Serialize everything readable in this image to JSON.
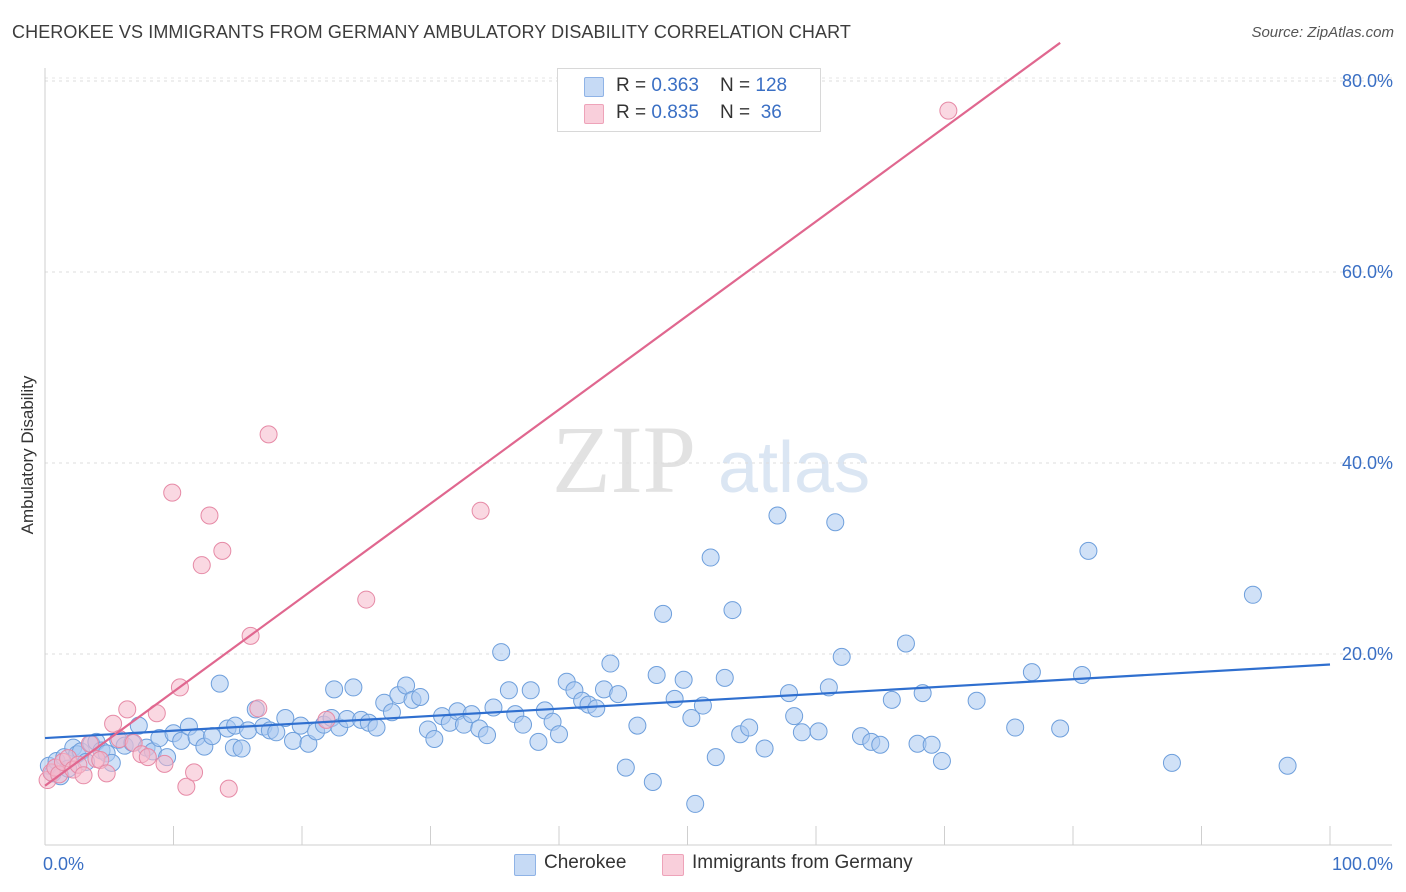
{
  "header": {
    "title": "CHEROKEE VS IMMIGRANTS FROM GERMANY AMBULATORY DISABILITY CORRELATION CHART",
    "source": "Source: ZipAtlas.com"
  },
  "watermark": {
    "zip": "ZIP",
    "atlas": "atlas"
  },
  "legend_top": {
    "rows": [
      {
        "r_label": "R = ",
        "r_value": "0.363",
        "n_label": "N = ",
        "n_value": "128",
        "color": "#a9c8f0"
      },
      {
        "r_label": "R = ",
        "r_value": "0.835",
        "n_label": "N = ",
        "n_value": " 36",
        "color": "#f6b8cb"
      }
    ]
  },
  "legend_bottom": {
    "items": [
      {
        "label": "Cherokee",
        "color": "#a9c8f0"
      },
      {
        "label": "Immigrants from Germany",
        "color": "#f6b8cb"
      }
    ]
  },
  "chart_data": {
    "type": "scatter",
    "title": "CHEROKEE VS IMMIGRANTS FROM GERMANY AMBULATORY DISABILITY CORRELATION CHART",
    "xlabel": "",
    "ylabel": "Ambulatory Disability",
    "xlim": [
      0,
      100
    ],
    "ylim": [
      0,
      84
    ],
    "x_tick_labels": [
      {
        "value": 0,
        "label": "0.0%"
      },
      {
        "value": 100,
        "label": "100.0%"
      }
    ],
    "y_tick_labels": [
      {
        "value": 20,
        "label": "20.0%"
      },
      {
        "value": 40,
        "label": "40.0%"
      },
      {
        "value": 60,
        "label": "60.0%"
      },
      {
        "value": 80,
        "label": "80.0%"
      }
    ],
    "x_minor_ticks": [
      10,
      20,
      30,
      40,
      50,
      60,
      70,
      80,
      90,
      100
    ],
    "grid": true,
    "legend_position": "top-center",
    "series": [
      {
        "name": "Cherokee",
        "color": "#a9c8f0",
        "stroke": "#6e9fdc",
        "trend": {
          "x": [
            0,
            100
          ],
          "y": [
            11.2,
            18.9
          ]
        },
        "points": [
          [
            0.3,
            8.3
          ],
          [
            0.6,
            7.5
          ],
          [
            0.9,
            8.8
          ],
          [
            1.2,
            7.2
          ],
          [
            1.5,
            9.2
          ],
          [
            1.8,
            8.0
          ],
          [
            2.2,
            10.2
          ],
          [
            2.5,
            9.5
          ],
          [
            2.8,
            9.8
          ],
          [
            3.2,
            8.7
          ],
          [
            3.6,
            10.6
          ],
          [
            4.0,
            10.8
          ],
          [
            4.4,
            9.9
          ],
          [
            4.8,
            9.6
          ],
          [
            5.2,
            8.6
          ],
          [
            5.7,
            11.0
          ],
          [
            6.2,
            10.4
          ],
          [
            6.8,
            10.7
          ],
          [
            7.3,
            12.5
          ],
          [
            7.9,
            10.2
          ],
          [
            8.4,
            9.8
          ],
          [
            8.9,
            11.2
          ],
          [
            9.5,
            9.2
          ],
          [
            10.0,
            11.7
          ],
          [
            10.6,
            10.9
          ],
          [
            11.2,
            12.4
          ],
          [
            11.8,
            11.3
          ],
          [
            12.4,
            10.3
          ],
          [
            13.0,
            11.4
          ],
          [
            13.6,
            16.9
          ],
          [
            14.2,
            12.2
          ],
          [
            14.8,
            12.5
          ],
          [
            14.7,
            10.2
          ],
          [
            15.3,
            10.1
          ],
          [
            15.8,
            12.0
          ],
          [
            16.4,
            14.2
          ],
          [
            17.0,
            12.4
          ],
          [
            17.5,
            12.0
          ],
          [
            18.0,
            11.8
          ],
          [
            18.7,
            13.3
          ],
          [
            19.3,
            10.9
          ],
          [
            19.9,
            12.5
          ],
          [
            20.5,
            10.6
          ],
          [
            21.1,
            11.9
          ],
          [
            21.7,
            12.6
          ],
          [
            22.3,
            13.3
          ],
          [
            22.9,
            12.3
          ],
          [
            22.5,
            16.3
          ],
          [
            23.5,
            13.2
          ],
          [
            24.0,
            16.5
          ],
          [
            24.6,
            13.1
          ],
          [
            25.2,
            12.8
          ],
          [
            25.8,
            12.3
          ],
          [
            26.4,
            14.9
          ],
          [
            27.0,
            13.9
          ],
          [
            27.5,
            15.7
          ],
          [
            28.1,
            16.7
          ],
          [
            28.6,
            15.2
          ],
          [
            29.2,
            15.5
          ],
          [
            29.8,
            12.1
          ],
          [
            30.3,
            11.1
          ],
          [
            30.9,
            13.5
          ],
          [
            31.5,
            12.8
          ],
          [
            32.1,
            14.0
          ],
          [
            32.6,
            12.6
          ],
          [
            33.2,
            13.7
          ],
          [
            33.8,
            12.2
          ],
          [
            34.4,
            11.5
          ],
          [
            34.9,
            14.4
          ],
          [
            35.5,
            20.2
          ],
          [
            36.1,
            16.2
          ],
          [
            36.6,
            13.7
          ],
          [
            37.2,
            12.6
          ],
          [
            37.8,
            16.2
          ],
          [
            38.4,
            10.8
          ],
          [
            38.9,
            14.1
          ],
          [
            39.5,
            12.9
          ],
          [
            40.0,
            11.6
          ],
          [
            40.6,
            17.1
          ],
          [
            41.2,
            16.2
          ],
          [
            41.8,
            15.1
          ],
          [
            42.3,
            14.7
          ],
          [
            42.9,
            14.3
          ],
          [
            43.5,
            16.3
          ],
          [
            44.0,
            19.0
          ],
          [
            44.6,
            15.8
          ],
          [
            45.2,
            8.1
          ],
          [
            46.1,
            12.5
          ],
          [
            47.3,
            6.6
          ],
          [
            47.6,
            17.8
          ],
          [
            48.1,
            24.2
          ],
          [
            49.0,
            15.3
          ],
          [
            49.7,
            17.3
          ],
          [
            50.3,
            13.3
          ],
          [
            50.6,
            4.3
          ],
          [
            51.2,
            14.6
          ],
          [
            51.8,
            30.1
          ],
          [
            52.2,
            9.2
          ],
          [
            52.9,
            17.5
          ],
          [
            53.5,
            24.6
          ],
          [
            54.1,
            11.6
          ],
          [
            54.8,
            12.3
          ],
          [
            56.0,
            10.1
          ],
          [
            57.0,
            34.5
          ],
          [
            57.9,
            15.9
          ],
          [
            58.3,
            13.5
          ],
          [
            58.9,
            11.8
          ],
          [
            60.2,
            11.9
          ],
          [
            61.0,
            16.5
          ],
          [
            61.5,
            33.8
          ],
          [
            62.0,
            19.7
          ],
          [
            63.5,
            11.4
          ],
          [
            64.3,
            10.8
          ],
          [
            65.0,
            10.5
          ],
          [
            65.9,
            15.2
          ],
          [
            67.0,
            21.1
          ],
          [
            67.9,
            10.6
          ],
          [
            68.3,
            15.9
          ],
          [
            69.0,
            10.5
          ],
          [
            69.8,
            8.8
          ],
          [
            72.5,
            15.1
          ],
          [
            75.5,
            12.3
          ],
          [
            76.8,
            18.1
          ],
          [
            79.0,
            12.2
          ],
          [
            80.7,
            17.8
          ],
          [
            81.2,
            30.8
          ],
          [
            87.7,
            8.6
          ],
          [
            94.0,
            26.2
          ],
          [
            96.7,
            8.3
          ]
        ]
      },
      {
        "name": "Immigrants from Germany",
        "color": "#f6b8cb",
        "stroke": "#e68aa6",
        "trend": {
          "x": [
            0,
            79
          ],
          "y": [
            6.2,
            84
          ]
        },
        "points": [
          [
            0.2,
            6.8
          ],
          [
            0.5,
            7.6
          ],
          [
            0.8,
            8.1
          ],
          [
            1.1,
            7.4
          ],
          [
            1.4,
            8.7
          ],
          [
            1.8,
            9.1
          ],
          [
            2.2,
            7.9
          ],
          [
            2.6,
            8.4
          ],
          [
            3.0,
            7.3
          ],
          [
            3.5,
            10.6
          ],
          [
            4.0,
            9.0
          ],
          [
            4.3,
            8.9
          ],
          [
            4.8,
            7.5
          ],
          [
            5.3,
            12.7
          ],
          [
            5.8,
            11.1
          ],
          [
            6.4,
            14.2
          ],
          [
            6.9,
            10.7
          ],
          [
            7.5,
            9.5
          ],
          [
            8.0,
            9.2
          ],
          [
            8.7,
            13.8
          ],
          [
            9.3,
            8.5
          ],
          [
            9.9,
            36.9
          ],
          [
            10.5,
            16.5
          ],
          [
            11.0,
            6.1
          ],
          [
            11.6,
            7.6
          ],
          [
            12.2,
            29.3
          ],
          [
            12.8,
            34.5
          ],
          [
            13.8,
            30.8
          ],
          [
            14.3,
            5.9
          ],
          [
            16.0,
            21.9
          ],
          [
            16.6,
            14.3
          ],
          [
            17.4,
            43.0
          ],
          [
            21.9,
            13.1
          ],
          [
            25.0,
            25.7
          ],
          [
            33.9,
            35.0
          ],
          [
            70.3,
            76.9
          ]
        ]
      }
    ]
  }
}
